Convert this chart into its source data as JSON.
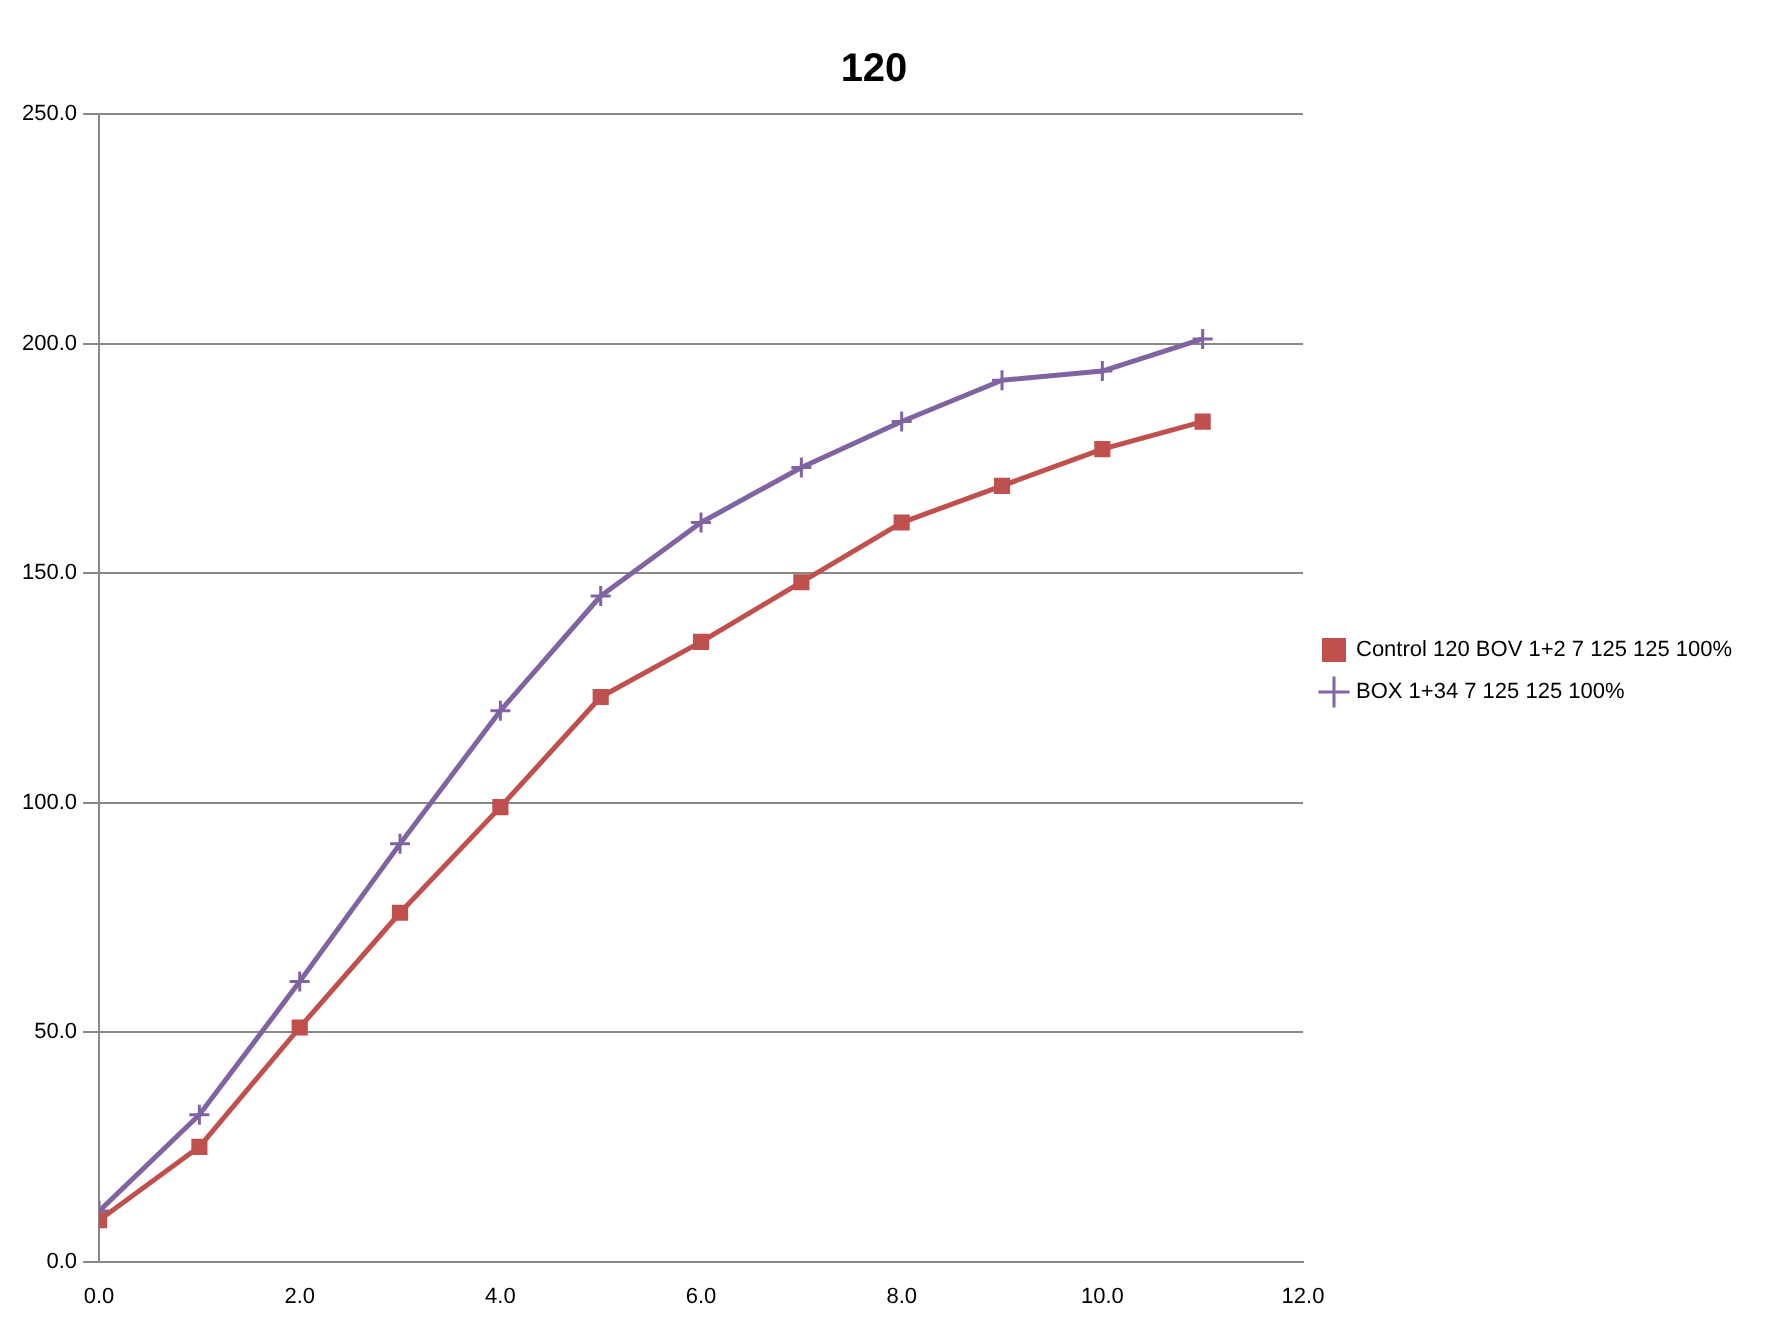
{
  "chart_data": {
    "type": "line",
    "title": "120",
    "x": [
      0,
      1,
      2,
      3,
      4,
      5,
      6,
      7,
      8,
      9,
      10,
      11
    ],
    "series": [
      {
        "name": "Control 120 BOV 1+2 7 125 125 100%",
        "color": "#c0504d",
        "marker": "square",
        "values": [
          9,
          25,
          51,
          76,
          99,
          123,
          135,
          148,
          161,
          169,
          177,
          183
        ]
      },
      {
        "name": "BOX 1+34 7 125 125 100%",
        "color": "#8064a2",
        "marker": "cross",
        "values": [
          11,
          32,
          61,
          91,
          120,
          145,
          161,
          173,
          183,
          192,
          194,
          201
        ]
      }
    ],
    "xlim": [
      0,
      12
    ],
    "xticks": [
      {
        "value": 0,
        "label": "0.0"
      },
      {
        "value": 2,
        "label": "2.0"
      },
      {
        "value": 4,
        "label": "4.0"
      },
      {
        "value": 6,
        "label": "6.0"
      },
      {
        "value": 8,
        "label": "8.0"
      },
      {
        "value": 10,
        "label": "10.0"
      },
      {
        "value": 12,
        "label": "12.0"
      }
    ],
    "ylim": [
      0,
      250
    ],
    "yticks": [
      {
        "value": 0,
        "label": "0.0"
      },
      {
        "value": 50,
        "label": "50.0"
      },
      {
        "value": 100,
        "label": "100.0"
      },
      {
        "value": 150,
        "label": "150.0"
      },
      {
        "value": 200,
        "label": "200.0"
      },
      {
        "value": 250,
        "label": "250.0"
      }
    ],
    "grid": "y",
    "legend": "right"
  }
}
